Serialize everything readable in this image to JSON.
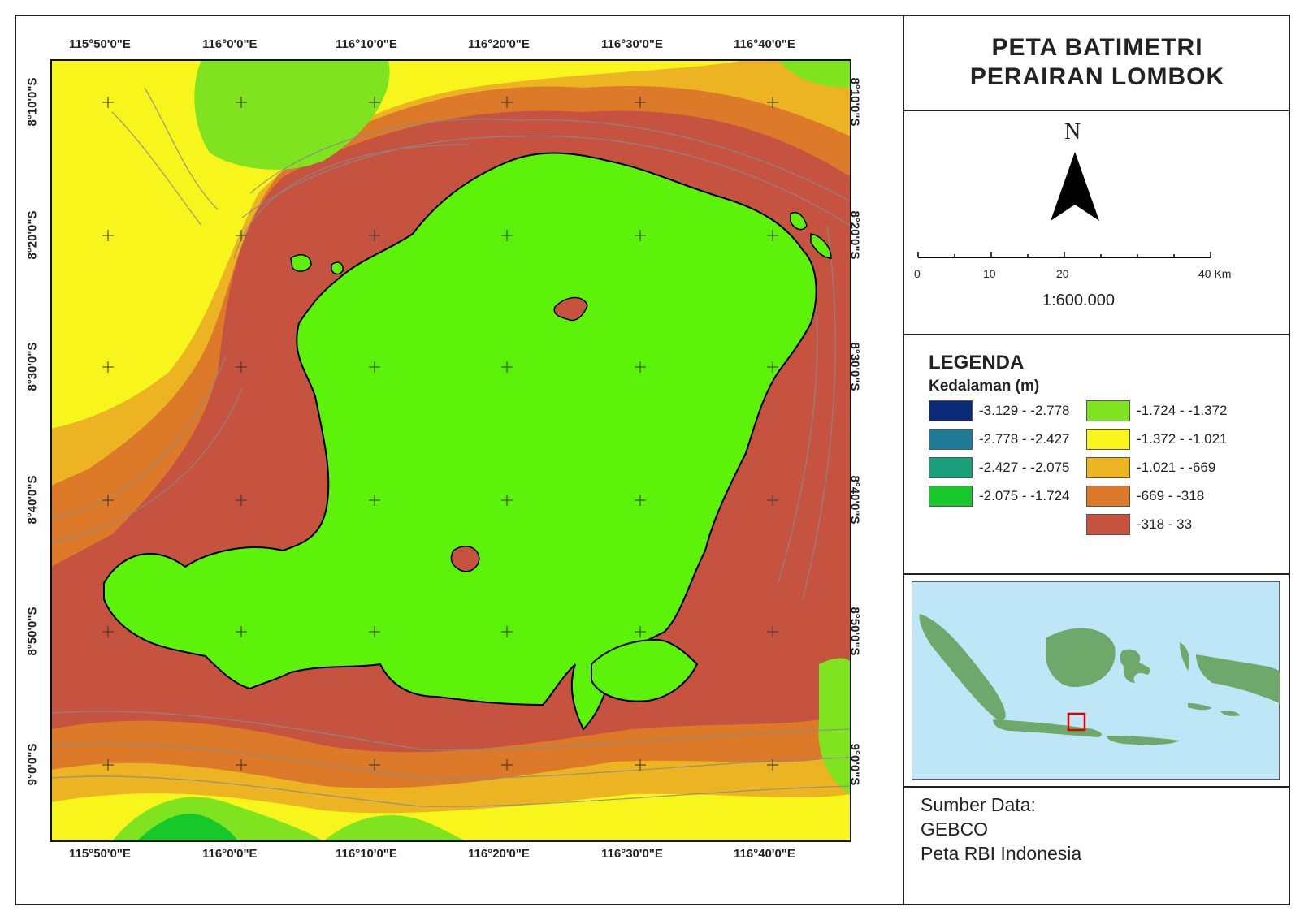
{
  "title": {
    "line1": "PETA BATIMETRI",
    "line2": "PERAIRAN LOMBOK"
  },
  "north": {
    "letter": "N"
  },
  "scale_bar": {
    "ticks": [
      "0",
      "10",
      "20",
      "40 Km"
    ],
    "ratio": "1:600.000"
  },
  "legend": {
    "title": "LEGENDA",
    "subtitle": "Kedalaman (m)",
    "items": [
      {
        "label": "-3.129 - -2.778",
        "color": "#0c2a7a"
      },
      {
        "label": "-2.778 - -2.427",
        "color": "#1f7a96"
      },
      {
        "label": "-2.427 - -2.075",
        "color": "#18a07a"
      },
      {
        "label": "-2.075 - -1.724",
        "color": "#16c82a"
      },
      {
        "label": "-1.724 - -1.372",
        "color": "#7fe320"
      },
      {
        "label": "-1.372 - -1.021",
        "color": "#f8f51c"
      },
      {
        "label": "-1.021 - -669",
        "color": "#ecb323"
      },
      {
        "label": "-669 - -318",
        "color": "#dc7a2a"
      },
      {
        "label": "-318 - 33",
        "color": "#c5533f"
      }
    ]
  },
  "map": {
    "longitudes": [
      "115°50'0\"E",
      "116°0'0\"E",
      "116°10'0\"E",
      "116°20'0\"E",
      "116°30'0\"E",
      "116°40'0\"E"
    ],
    "latitudes": [
      "8°10'0\"S",
      "8°20'0\"S",
      "8°30'0\"S",
      "8°40'0\"S",
      "8°50'0\"S",
      "9°0'0\"S"
    ],
    "land_color": "#5cf20a",
    "outline_color": "#000000"
  },
  "source": {
    "heading": "Sumber Data:",
    "line1": "GEBCO",
    "line2": "Peta RBI Indonesia"
  }
}
